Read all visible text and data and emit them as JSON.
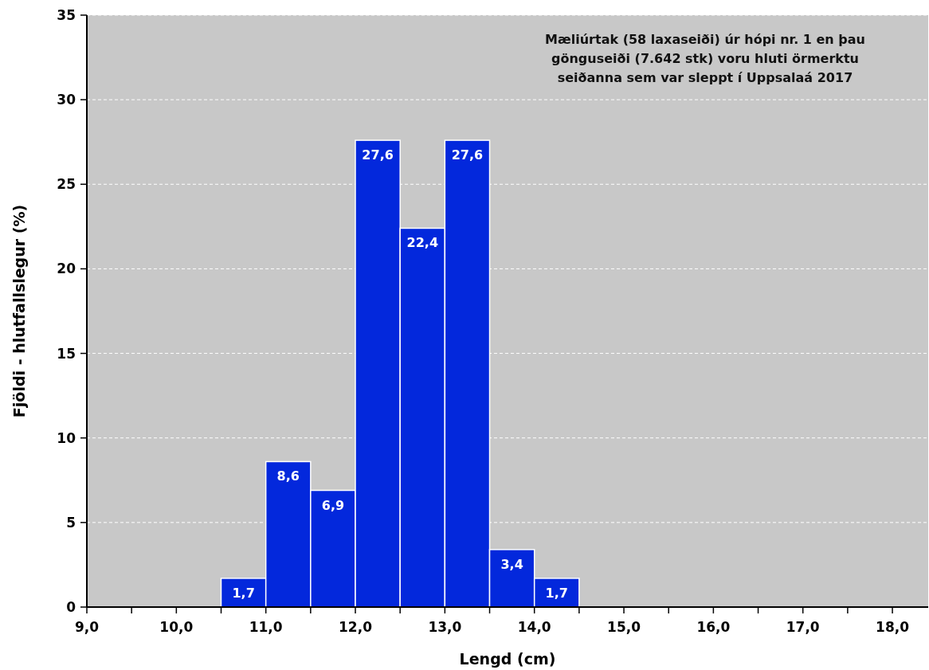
{
  "chart_data": {
    "type": "histogram",
    "xlabel": "Lengd (cm)",
    "ylabel": "Fjöldi - hlutfallslegur (%)",
    "annotations": [
      "Mæliúrtak (58 laxaseiði) úr hópi nr. 1 en þau gönguseiði (7.642 stk) voru hluti örmerktu seiðanna sem var sleppt í Uppsalaá 2017"
    ],
    "bins": [
      10.5,
      11,
      11.5,
      12,
      12.5,
      13,
      13.5,
      14,
      14.5
    ],
    "values": [
      1.7,
      8.6,
      6.9,
      27.6,
      22.4,
      27.6,
      3.4,
      1.7
    ],
    "color": "#0328dc",
    "value_labels": [
      "1,7",
      "8,6",
      "6,9",
      "27,6",
      "22,4",
      "27,6",
      "3,4",
      "1,7"
    ],
    "xlim": [
      9,
      18.4
    ],
    "xticks": [
      {
        "value": 9,
        "label": "9,0"
      },
      {
        "value": 9.5,
        "label": null
      },
      {
        "value": 10,
        "label": "10,0"
      },
      {
        "value": 10.5,
        "label": null
      },
      {
        "value": 11,
        "label": "11,0"
      },
      {
        "value": 11.5,
        "label": null
      },
      {
        "value": 12,
        "label": "12,0"
      },
      {
        "value": 12.5,
        "label": null
      },
      {
        "value": 13,
        "label": "13,0"
      },
      {
        "value": 13.5,
        "label": null
      },
      {
        "value": 14,
        "label": "14,0"
      },
      {
        "value": 14.5,
        "label": null
      },
      {
        "value": 15,
        "label": "15,0"
      },
      {
        "value": 15.5,
        "label": null
      },
      {
        "value": 16,
        "label": "16,0"
      },
      {
        "value": 16.5,
        "label": null
      },
      {
        "value": 17,
        "label": "17,0"
      },
      {
        "value": 17.5,
        "label": null
      },
      {
        "value": 18,
        "label": "18,0"
      }
    ],
    "ylim": [
      0,
      35
    ],
    "yticks": [
      0,
      5,
      10,
      15,
      20,
      25,
      30,
      35
    ],
    "grid": "y"
  }
}
